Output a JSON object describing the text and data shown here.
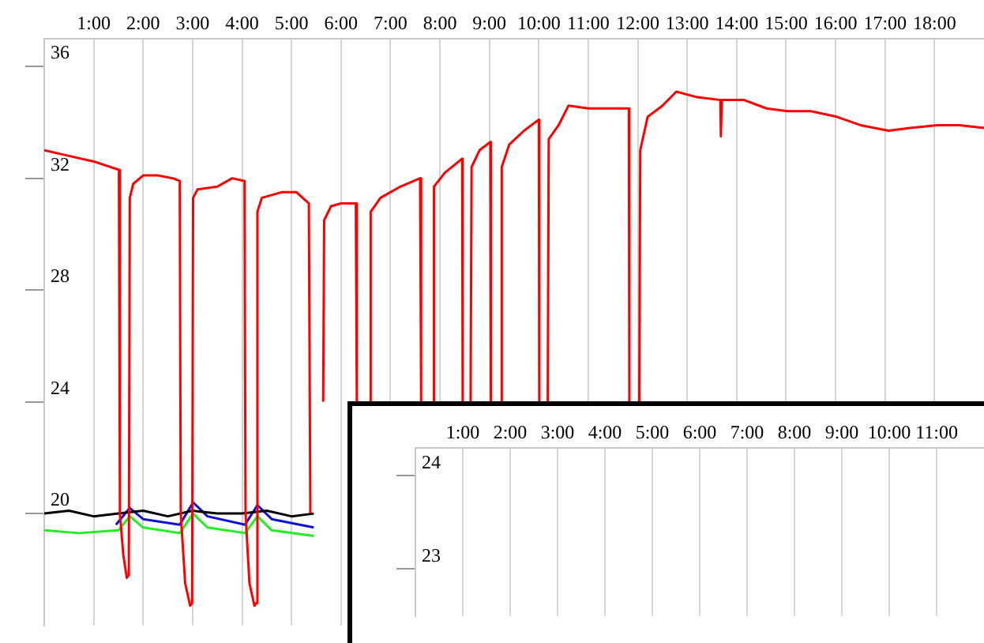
{
  "chart_data": [
    {
      "type": "line",
      "xlim": [
        0,
        19
      ],
      "ylim": [
        16,
        37
      ],
      "yticks": [
        20,
        24,
        28,
        32,
        36
      ],
      "grid": "x",
      "legend": false,
      "marker": "none",
      "xticks": [
        {
          "value": 1,
          "label": "1:00"
        },
        {
          "value": 2,
          "label": "2:00"
        },
        {
          "value": 3,
          "label": "3:00"
        },
        {
          "value": 4,
          "label": "4:00"
        },
        {
          "value": 5,
          "label": "5:00"
        },
        {
          "value": 6,
          "label": "6:00"
        },
        {
          "value": 7,
          "label": "7:00"
        },
        {
          "value": 8,
          "label": "8:00"
        },
        {
          "value": 9,
          "label": "9:00"
        },
        {
          "value": 10,
          "label": "10:00"
        },
        {
          "value": 11,
          "label": "11:00"
        },
        {
          "value": 12,
          "label": "12:00"
        },
        {
          "value": 13,
          "label": "13:00"
        },
        {
          "value": 14,
          "label": "14:00"
        },
        {
          "value": 15,
          "label": "15:00"
        },
        {
          "value": 16,
          "label": "16:00"
        },
        {
          "value": 17,
          "label": "17:00"
        },
        {
          "value": 18,
          "label": "18:00"
        }
      ],
      "series": [
        {
          "color": "#ff0000",
          "x": [
            0,
            0.5,
            1.0,
            1.51,
            1.53,
            1.6,
            1.67,
            1.71,
            1.73,
            1.8,
            2.0,
            2.3,
            2.6,
            2.74,
            2.76,
            2.85,
            2.95,
            2.99,
            3.01,
            3.1,
            3.5,
            3.8,
            4.05,
            4.07,
            4.15,
            4.25,
            4.29,
            4.31,
            4.4,
            4.8,
            5.1,
            5.35,
            5.38,
            5.42,
            5.5,
            5.64,
            5.66,
            5.8,
            6.0,
            6.3,
            6.32,
            6.4,
            6.58,
            6.6,
            6.8,
            7.2,
            7.6,
            7.62,
            7.7,
            7.86,
            7.88,
            8.1,
            8.45,
            8.46,
            8.5,
            8.62,
            8.64,
            8.8,
            9.02,
            9.03,
            9.1,
            9.23,
            9.25,
            9.4,
            9.7,
            10.0,
            10.01,
            10.1,
            10.18,
            10.2,
            10.4,
            10.6,
            11.0,
            11.5,
            11.82,
            11.83,
            11.9,
            12.03,
            12.05,
            12.2,
            12.5,
            12.78,
            13.2,
            13.67,
            13.68,
            13.7,
            14.15,
            14.6,
            15.03,
            15.5,
            16.02,
            16.5,
            17.07,
            17.5,
            18.06,
            18.5,
            19.0
          ],
          "values": [
            33.0,
            32.8,
            32.6,
            32.3,
            20,
            18.5,
            17.7,
            17.8,
            31.3,
            31.8,
            32.1,
            32.1,
            32.0,
            31.9,
            20,
            17.5,
            16.7,
            16.8,
            31.3,
            31.6,
            31.7,
            32.0,
            31.9,
            20,
            17.5,
            16.7,
            16.8,
            30.8,
            31.3,
            31.5,
            31.5,
            31.1,
            20,
            null,
            null,
            24,
            30.5,
            31.0,
            31.1,
            31.1,
            24,
            null,
            24,
            30.8,
            31.3,
            31.7,
            32.0,
            24,
            null,
            24,
            31.7,
            32.2,
            32.7,
            24,
            null,
            24,
            32.4,
            33.0,
            33.3,
            24,
            null,
            24,
            32.4,
            33.2,
            33.7,
            34.1,
            24,
            null,
            24,
            33.4,
            33.9,
            34.6,
            34.5,
            34.5,
            34.5,
            24,
            null,
            24,
            33.0,
            34.2,
            34.6,
            35.1,
            34.9,
            34.8,
            33.5,
            34.8,
            34.8,
            34.5,
            34.4,
            34.4,
            34.2,
            33.9,
            33.7,
            33.8,
            33.9,
            33.9,
            33.8
          ]
        },
        {
          "color": "#000000",
          "x": [
            0,
            0.5,
            1.0,
            1.5,
            2.0,
            2.5,
            3.0,
            3.5,
            4.0,
            4.5,
            5.0,
            5.45
          ],
          "values": [
            20.0,
            20.1,
            19.9,
            20.0,
            20.1,
            19.9,
            20.1,
            20.0,
            20.0,
            20.1,
            19.9,
            20.0
          ]
        },
        {
          "color": "#1010d0",
          "x": [
            1.45,
            1.73,
            2.0,
            2.74,
            3.01,
            3.3,
            4.06,
            4.31,
            4.6,
            5.45
          ],
          "values": [
            19.6,
            20.2,
            19.8,
            19.6,
            20.4,
            19.9,
            19.6,
            20.3,
            19.8,
            19.5
          ]
        },
        {
          "color": "#22ee22",
          "x": [
            0,
            0.7,
            1.5,
            1.73,
            2.0,
            2.74,
            3.01,
            3.3,
            4.06,
            4.31,
            4.6,
            5.45
          ],
          "values": [
            19.4,
            19.3,
            19.4,
            19.9,
            19.5,
            19.3,
            20.0,
            19.5,
            19.3,
            19.9,
            19.4,
            19.2
          ]
        }
      ]
    },
    {
      "type": "line",
      "xlim": [
        0,
        12
      ],
      "ylim": [
        22.5,
        24.3
      ],
      "yticks": [
        23,
        24
      ],
      "grid": "x",
      "legend": false,
      "xticks": [
        {
          "value": 1,
          "label": "1:00"
        },
        {
          "value": 2,
          "label": "2:00"
        },
        {
          "value": 3,
          "label": "3:00"
        },
        {
          "value": 4,
          "label": "4:00"
        },
        {
          "value": 5,
          "label": "5:00"
        },
        {
          "value": 6,
          "label": "6:00"
        },
        {
          "value": 7,
          "label": "7:00"
        },
        {
          "value": 8,
          "label": "8:00"
        },
        {
          "value": 9,
          "label": "9:00"
        },
        {
          "value": 10,
          "label": "10:00"
        },
        {
          "value": 11,
          "label": "11:00"
        }
      ]
    }
  ]
}
